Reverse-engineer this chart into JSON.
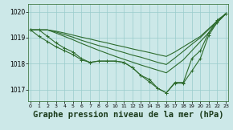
{
  "background_color": "#cce8e8",
  "grid_color": "#99cccc",
  "line_color": "#2d6b2d",
  "title": "Graphe pression niveau de la mer (hPa)",
  "title_fontsize": 7.5,
  "ylim": [
    1016.55,
    1020.3
  ],
  "xlim": [
    -0.3,
    23.3
  ],
  "yticks": [
    1017,
    1018,
    1019,
    1020
  ],
  "xticks": [
    0,
    1,
    2,
    3,
    4,
    5,
    6,
    7,
    8,
    9,
    10,
    11,
    12,
    13,
    14,
    15,
    16,
    17,
    18,
    19,
    20,
    21,
    22,
    23
  ],
  "line1_y": [
    1019.3,
    1019.3,
    1019.05,
    1018.8,
    1018.6,
    1018.45,
    1018.2,
    1018.05,
    1018.1,
    1018.1,
    1018.1,
    1018.05,
    1017.85,
    1017.55,
    1017.3,
    1017.05,
    1016.88,
    1017.25,
    1017.25,
    1017.72,
    1018.2,
    1019.1,
    1019.6,
    1019.92
  ],
  "line2_y": [
    1019.3,
    1019.05,
    1018.85,
    1018.65,
    1018.5,
    1018.35,
    1018.15,
    1018.05,
    1018.1,
    1018.1,
    1018.1,
    1018.05,
    1017.85,
    1017.55,
    1017.4,
    1017.05,
    1016.88,
    1017.28,
    1017.28,
    1018.2,
    1018.5,
    1019.2,
    1019.68,
    1019.92
  ],
  "line3_y": [
    1019.3,
    1019.3,
    1019.3,
    1019.25,
    1019.18,
    1019.1,
    1019.02,
    1018.95,
    1018.87,
    1018.8,
    1018.72,
    1018.65,
    1018.57,
    1018.5,
    1018.43,
    1018.35,
    1018.28,
    1018.45,
    1018.65,
    1018.85,
    1019.05,
    1019.35,
    1019.65,
    1019.92
  ],
  "line4_y": [
    1019.3,
    1019.3,
    1019.3,
    1019.22,
    1019.12,
    1019.02,
    1018.9,
    1018.8,
    1018.7,
    1018.62,
    1018.52,
    1018.43,
    1018.33,
    1018.25,
    1018.15,
    1018.05,
    1017.97,
    1018.22,
    1018.48,
    1018.75,
    1019.0,
    1019.32,
    1019.62,
    1019.92
  ],
  "line5_y": [
    1019.3,
    1019.3,
    1019.3,
    1019.18,
    1019.05,
    1018.92,
    1018.78,
    1018.65,
    1018.52,
    1018.4,
    1018.28,
    1018.17,
    1018.06,
    1017.95,
    1017.85,
    1017.75,
    1017.65,
    1017.9,
    1018.15,
    1018.5,
    1018.85,
    1019.2,
    1019.58,
    1019.92
  ]
}
